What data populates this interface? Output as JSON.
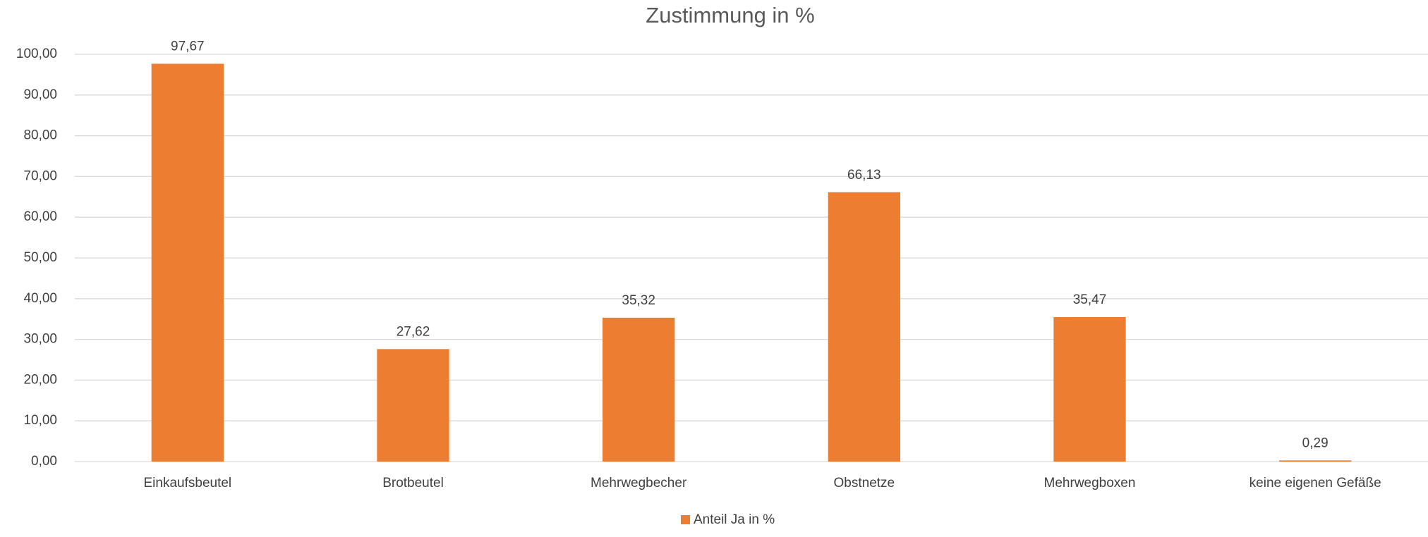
{
  "chart_data": {
    "type": "bar",
    "title": "Zustimmung in %",
    "categories": [
      "Einkaufsbeutel",
      "Brotbeutel",
      "Mehrwegbecher",
      "Obstnetze",
      "Mehrwegboxen",
      "keine eigenen Gefäße"
    ],
    "series": [
      {
        "name": "Anteil Ja in %",
        "color": "#ed7d31",
        "values": [
          97.67,
          27.62,
          35.32,
          66.13,
          35.47,
          0.29
        ],
        "value_labels": [
          "97,67",
          "27,62",
          "35,32",
          "66,13",
          "35,47",
          "0,29"
        ]
      }
    ],
    "ylim": [
      0,
      100
    ],
    "yticks": [
      {
        "value": 0,
        "label": "0,00"
      },
      {
        "value": 10,
        "label": "10,00"
      },
      {
        "value": 20,
        "label": "20,00"
      },
      {
        "value": 30,
        "label": "30,00"
      },
      {
        "value": 40,
        "label": "40,00"
      },
      {
        "value": 50,
        "label": "50,00"
      },
      {
        "value": 60,
        "label": "60,00"
      },
      {
        "value": 70,
        "label": "70,00"
      },
      {
        "value": 80,
        "label": "80,00"
      },
      {
        "value": 90,
        "label": "90,00"
      },
      {
        "value": 100,
        "label": "100,00"
      }
    ],
    "grid": true,
    "legend": "bottom"
  }
}
